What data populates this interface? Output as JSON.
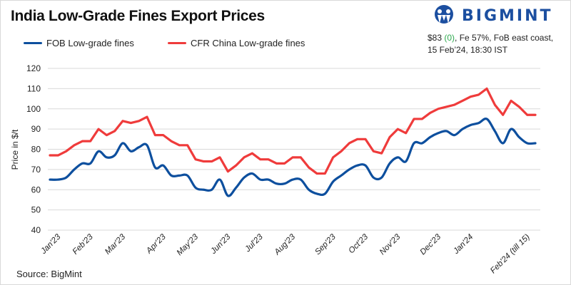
{
  "header": {
    "title": "India Low-Grade Fines Export Prices",
    "logo_text": "BIGMINT",
    "info_price": "$83",
    "info_change": "(0)",
    "info_rest": ", Fe 57%, FoB east coast,",
    "info_line2": "15 Feb’24, 18:30 IST"
  },
  "footer": {
    "source": "Source: BigMint"
  },
  "colors": {
    "fob": "#0d4f9e",
    "cfr": "#ef3b3b",
    "grid": "#d9d9d9"
  },
  "chart_data": {
    "type": "line",
    "title": "India Low-Grade Fines Export Prices",
    "xlabel": "",
    "ylabel": "Price in $/t",
    "ylim": [
      40,
      120
    ],
    "yticks": [
      40,
      50,
      60,
      70,
      80,
      90,
      100,
      110,
      120
    ],
    "grid": true,
    "legend_position": "top-left",
    "x_tick_labels": [
      {
        "label": "Jan'23",
        "index": 1
      },
      {
        "label": "Feb'23",
        "index": 5
      },
      {
        "label": "Mar'23",
        "index": 9
      },
      {
        "label": "Apr'23",
        "index": 14
      },
      {
        "label": "May'23",
        "index": 18
      },
      {
        "label": "Jun'23",
        "index": 22
      },
      {
        "label": "Jul'23",
        "index": 26
      },
      {
        "label": "Aug'23",
        "index": 30
      },
      {
        "label": "Sep'23",
        "index": 35
      },
      {
        "label": "Oct'23",
        "index": 39
      },
      {
        "label": "Nov'23",
        "index": 43
      },
      {
        "label": "Dec'23",
        "index": 48
      },
      {
        "label": "Jan'24",
        "index": 52
      },
      {
        "label": "Feb'24 (till 15)",
        "index": 59
      }
    ],
    "series": [
      {
        "name": "FOB Low-grade fines",
        "smooth": true,
        "values": [
          65,
          65,
          66,
          70,
          73,
          73,
          79,
          76,
          77,
          83,
          79,
          81,
          82,
          71,
          72,
          67,
          67,
          67,
          61,
          60,
          60,
          65,
          57,
          61,
          66,
          68,
          65,
          65,
          63,
          63,
          65,
          65,
          60,
          58,
          58,
          64,
          67,
          70,
          72,
          72,
          66,
          66,
          73,
          76,
          74,
          83,
          83,
          86,
          88,
          89,
          87,
          90,
          92,
          93,
          95,
          89,
          83,
          90,
          86,
          83,
          83
        ]
      },
      {
        "name": "CFR China Low-grade fines",
        "smooth": false,
        "values": [
          77,
          77,
          79,
          82,
          84,
          84,
          90,
          87,
          89,
          94,
          93,
          94,
          96,
          87,
          87,
          84,
          82,
          82,
          75,
          74,
          74,
          76,
          69,
          72,
          76,
          78,
          75,
          75,
          73,
          73,
          76,
          76,
          71,
          68,
          68,
          76,
          79,
          83,
          85,
          85,
          79,
          78,
          86,
          90,
          88,
          95,
          95,
          98,
          100,
          101,
          102,
          104,
          106,
          107,
          110,
          102,
          97,
          104,
          101,
          97,
          97
        ]
      }
    ]
  }
}
